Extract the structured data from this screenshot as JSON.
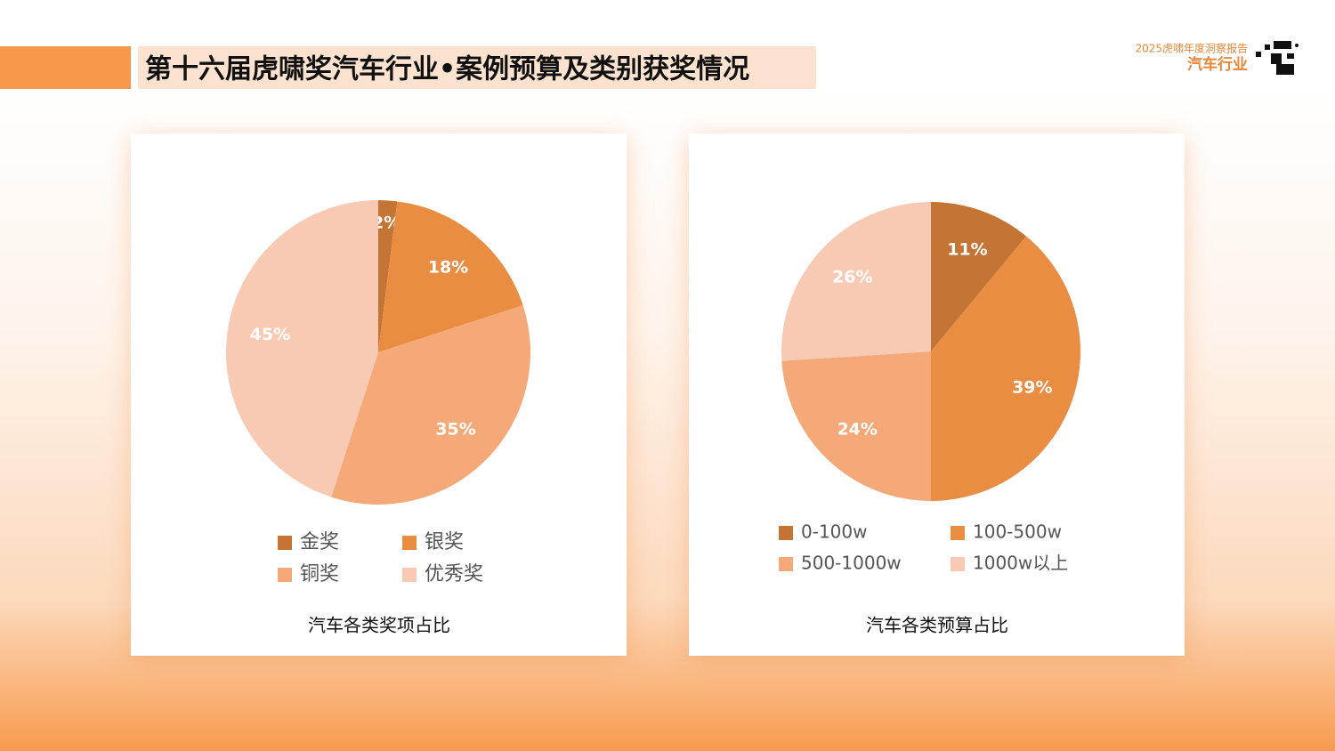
{
  "header": {
    "title": "第十六届虎啸奖汽车行业•案例预算及类别获奖情况",
    "brand_report": "2025虎啸年度洞察报告",
    "brand_industry": "汽车行业"
  },
  "chart_data": [
    {
      "type": "pie",
      "title": "汽车各类奖项占比",
      "categories": [
        "金奖",
        "银奖",
        "铜奖",
        "优秀奖"
      ],
      "values": [
        2,
        18,
        35,
        45
      ],
      "value_labels": [
        "2%",
        "18%",
        "35%",
        "45%"
      ],
      "colors": [
        "#c47535",
        "#e88d41",
        "#f5a978",
        "#f8cab4"
      ]
    },
    {
      "type": "pie",
      "title": "汽车各类预算占比",
      "categories": [
        "0-100w",
        "100-500w",
        "500-1000w",
        "1000w以上"
      ],
      "values": [
        11,
        39,
        24,
        26
      ],
      "value_labels": [
        "11%",
        "39%",
        "24%",
        "26%"
      ],
      "colors": [
        "#c47535",
        "#e88d41",
        "#f5a978",
        "#f8cab4"
      ]
    }
  ]
}
